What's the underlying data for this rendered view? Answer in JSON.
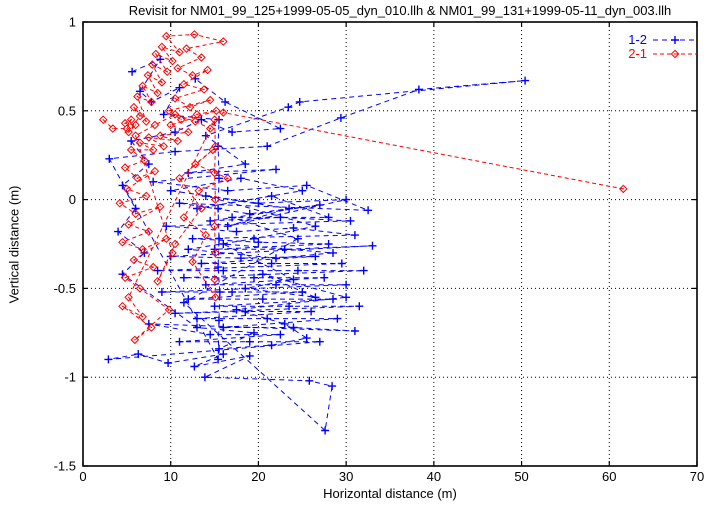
{
  "figure": {
    "title": "Revisit for NM01_99_125+1999-05-05_dyn_010.llh & NM01_99_131+1999-05-11_dyn_003.llh"
  },
  "chart_data": {
    "type": "scatter",
    "style": "linespoints, dashed connecting lines",
    "title": "Revisit for NM01_99_125+1999-05-05_dyn_010.llh & NM01_99_131+1999-05-11_dyn_003.llh",
    "xlabel": "Horizontal distance (m)",
    "ylabel": "Vertical distance (m)",
    "xlim": [
      0,
      70
    ],
    "ylim": [
      -1.5,
      1
    ],
    "grid": "dotted",
    "legend_position": "top-right-inside",
    "xticks": {
      "values": [
        0,
        10,
        20,
        30,
        40,
        50,
        60,
        70
      ],
      "labels": [
        "0",
        "10",
        "20",
        "30",
        "40",
        "50",
        "60",
        "70"
      ]
    },
    "yticks": {
      "values": [
        1,
        0.5,
        0,
        -0.5,
        -1,
        -1.5
      ],
      "labels": [
        "1",
        "0.5",
        "0",
        "-0.5",
        "-1",
        "-1.5"
      ]
    },
    "series": [
      {
        "name": "1-2",
        "color": "#0000ff",
        "marker": "plus",
        "dash": "5,4",
        "points": [
          [
            5.6,
            0.72
          ],
          [
            8.8,
            0.79
          ],
          [
            6.5,
            0.61
          ],
          [
            7.8,
            0.55
          ],
          [
            11.0,
            0.63
          ],
          [
            9.2,
            0.48
          ],
          [
            15.5,
            0.45
          ],
          [
            15.4,
            0.3
          ],
          [
            15.5,
            0.12
          ],
          [
            15.4,
            -0.05
          ],
          [
            15.5,
            -0.22
          ],
          [
            15.4,
            -0.38
          ],
          [
            15.6,
            -0.52
          ],
          [
            15.5,
            -0.68
          ],
          [
            15.4,
            -0.9
          ],
          [
            3.0,
            0.23
          ],
          [
            10.5,
            0.27
          ],
          [
            21.0,
            0.3
          ],
          [
            29.4,
            0.46
          ],
          [
            38.3,
            0.62
          ],
          [
            50.4,
            0.67
          ],
          [
            24.7,
            0.55
          ],
          [
            23.4,
            0.52
          ],
          [
            14.0,
            0.36
          ],
          [
            18.5,
            0.2
          ],
          [
            12.0,
            0.15
          ],
          [
            22.0,
            0.17
          ],
          [
            8.0,
            0.1
          ],
          [
            16.5,
            0.05
          ],
          [
            25.5,
            0.08
          ],
          [
            32.5,
            -0.06
          ],
          [
            11.0,
            -0.02
          ],
          [
            19.0,
            -0.08
          ],
          [
            27.0,
            -0.03
          ],
          [
            14.5,
            -0.12
          ],
          [
            22.5,
            -0.1
          ],
          [
            30.5,
            -0.12
          ],
          [
            9.5,
            -0.15
          ],
          [
            17.5,
            -0.18
          ],
          [
            24.0,
            -0.16
          ],
          [
            31.0,
            -0.2
          ],
          [
            12.5,
            -0.22
          ],
          [
            20.0,
            -0.24
          ],
          [
            28.0,
            -0.25
          ],
          [
            15.0,
            -0.28
          ],
          [
            23.0,
            -0.28
          ],
          [
            33.0,
            -0.26
          ],
          [
            10.0,
            -0.32
          ],
          [
            18.0,
            -0.33
          ],
          [
            26.5,
            -0.32
          ],
          [
            13.5,
            -0.36
          ],
          [
            21.5,
            -0.36
          ],
          [
            29.5,
            -0.36
          ],
          [
            8.5,
            -0.4
          ],
          [
            16.0,
            -0.4
          ],
          [
            24.5,
            -0.4
          ],
          [
            32.0,
            -0.4
          ],
          [
            11.5,
            -0.44
          ],
          [
            19.5,
            -0.44
          ],
          [
            27.5,
            -0.44
          ],
          [
            14.0,
            -0.48
          ],
          [
            22.0,
            -0.48
          ],
          [
            30.0,
            -0.48
          ],
          [
            9.0,
            -0.52
          ],
          [
            17.0,
            -0.52
          ],
          [
            25.0,
            -0.52
          ],
          [
            12.0,
            -0.56
          ],
          [
            20.5,
            -0.56
          ],
          [
            28.5,
            -0.56
          ],
          [
            15.0,
            -0.6
          ],
          [
            23.5,
            -0.6
          ],
          [
            31.5,
            -0.6
          ],
          [
            10.5,
            -0.64
          ],
          [
            18.5,
            -0.63
          ],
          [
            26.0,
            -0.63
          ],
          [
            13.0,
            -0.67
          ],
          [
            21.0,
            -0.67
          ],
          [
            29.0,
            -0.67
          ],
          [
            16.0,
            -0.72
          ],
          [
            24.0,
            -0.72
          ],
          [
            31.0,
            -0.74
          ],
          [
            7.5,
            -0.7
          ],
          [
            14.5,
            -0.76
          ],
          [
            22.5,
            -0.76
          ],
          [
            11.0,
            -0.8
          ],
          [
            19.0,
            -0.8
          ],
          [
            27.0,
            -0.8
          ],
          [
            2.9,
            -0.9
          ],
          [
            6.3,
            -0.87
          ],
          [
            9.7,
            -0.92
          ],
          [
            16.0,
            -0.87
          ],
          [
            12.7,
            -0.94
          ],
          [
            19.0,
            -0.88
          ],
          [
            13.9,
            -1.0
          ],
          [
            25.8,
            -1.02
          ],
          [
            28.4,
            -1.05
          ],
          [
            27.6,
            -1.3
          ],
          [
            11.5,
            -0.58
          ],
          [
            24.5,
            -0.22
          ],
          [
            17.0,
            -0.1
          ],
          [
            28.0,
            -0.1
          ],
          [
            21.5,
            0.02
          ],
          [
            13.0,
            -0.05
          ],
          [
            25.0,
            0.05
          ],
          [
            18.0,
            0.12
          ],
          [
            10.0,
            0.05
          ],
          [
            20.0,
            -0.02
          ],
          [
            30.0,
            0.0
          ],
          [
            16.5,
            -0.15
          ],
          [
            23.5,
            -0.05
          ],
          [
            14.0,
            0.02
          ],
          [
            26.5,
            -0.15
          ],
          [
            19.5,
            -0.22
          ],
          [
            12.0,
            -0.28
          ],
          [
            22.0,
            -0.33
          ],
          [
            28.5,
            -0.3
          ],
          [
            16.0,
            -0.25
          ],
          [
            24.0,
            -0.45
          ],
          [
            18.5,
            -0.5
          ],
          [
            26.5,
            -0.55
          ],
          [
            20.5,
            -0.42
          ],
          [
            30.0,
            -0.55
          ],
          [
            17.5,
            -0.62
          ],
          [
            23.0,
            -0.7
          ],
          [
            25.5,
            -0.78
          ],
          [
            21.5,
            -0.82
          ],
          [
            15.5,
            -0.84
          ],
          [
            19.5,
            -0.75
          ],
          [
            13.0,
            -0.72
          ],
          [
            4.5,
            -0.42
          ],
          [
            7.0,
            -0.3
          ],
          [
            4.0,
            -0.18
          ],
          [
            6.0,
            -0.05
          ],
          [
            4.5,
            0.08
          ],
          [
            7.5,
            0.2
          ],
          [
            5.5,
            0.33
          ],
          [
            10.5,
            0.38
          ],
          [
            13.5,
            0.45
          ],
          [
            17.0,
            0.38
          ],
          [
            22.5,
            0.4
          ],
          [
            16.2,
            0.55
          ],
          [
            12.8,
            0.68
          ]
        ]
      },
      {
        "name": "2-1",
        "color": "#ff0000",
        "marker": "diamond",
        "dash": "4,3",
        "points": [
          [
            2.3,
            0.45
          ],
          [
            3.4,
            0.4
          ],
          [
            5.0,
            0.4
          ],
          [
            5.5,
            0.45
          ],
          [
            4.8,
            0.43
          ],
          [
            6.0,
            0.42
          ],
          [
            5.2,
            0.38
          ],
          [
            6.5,
            0.47
          ],
          [
            5.8,
            0.52
          ],
          [
            7.2,
            0.44
          ],
          [
            6.2,
            0.58
          ],
          [
            7.8,
            0.55
          ],
          [
            6.8,
            0.64
          ],
          [
            8.5,
            0.6
          ],
          [
            7.4,
            0.7
          ],
          [
            9.0,
            0.66
          ],
          [
            7.9,
            0.76
          ],
          [
            9.6,
            0.72
          ],
          [
            8.3,
            0.82
          ],
          [
            10.2,
            0.78
          ],
          [
            9.0,
            0.86
          ],
          [
            11.0,
            0.83
          ],
          [
            9.5,
            0.92
          ],
          [
            12.7,
            0.93
          ],
          [
            16.0,
            0.89
          ],
          [
            11.8,
            0.85
          ],
          [
            13.5,
            0.8
          ],
          [
            10.8,
            0.74
          ],
          [
            12.5,
            0.7
          ],
          [
            14.2,
            0.73
          ],
          [
            11.5,
            0.65
          ],
          [
            13.8,
            0.62
          ],
          [
            10.5,
            0.57
          ],
          [
            12.2,
            0.52
          ],
          [
            14.5,
            0.56
          ],
          [
            9.8,
            0.5
          ],
          [
            11.2,
            0.45
          ],
          [
            13.0,
            0.48
          ],
          [
            15.2,
            0.5
          ],
          [
            10.0,
            0.42
          ],
          [
            12.0,
            0.38
          ],
          [
            8.8,
            0.36
          ],
          [
            10.8,
            0.33
          ],
          [
            7.5,
            0.35
          ],
          [
            9.2,
            0.3
          ],
          [
            6.5,
            0.32
          ],
          [
            8.0,
            0.28
          ],
          [
            5.5,
            0.28
          ],
          [
            7.0,
            0.22
          ],
          [
            4.8,
            0.18
          ],
          [
            6.2,
            0.12
          ],
          [
            8.2,
            0.16
          ],
          [
            5.0,
            0.06
          ],
          [
            7.2,
            0.02
          ],
          [
            4.2,
            -0.02
          ],
          [
            6.0,
            -0.08
          ],
          [
            8.8,
            -0.04
          ],
          [
            5.2,
            -0.14
          ],
          [
            7.5,
            -0.18
          ],
          [
            4.5,
            -0.24
          ],
          [
            6.8,
            -0.28
          ],
          [
            9.5,
            -0.22
          ],
          [
            5.8,
            -0.34
          ],
          [
            8.0,
            -0.38
          ],
          [
            4.8,
            -0.44
          ],
          [
            6.5,
            -0.5
          ],
          [
            9.8,
            -0.62
          ],
          [
            5.9,
            -0.79
          ],
          [
            7.8,
            -0.72
          ],
          [
            4.5,
            -0.6
          ],
          [
            6.8,
            -0.66
          ],
          [
            5.2,
            -0.55
          ],
          [
            15.0,
            0.45
          ],
          [
            15.1,
            0.3
          ],
          [
            15.0,
            0.15
          ],
          [
            15.1,
            0.0
          ],
          [
            15.0,
            -0.15
          ],
          [
            15.1,
            -0.3
          ],
          [
            15.0,
            -0.45
          ],
          [
            15.1,
            -0.55
          ],
          [
            12.5,
            -0.35
          ],
          [
            14.0,
            -0.2
          ],
          [
            11.5,
            -0.1
          ],
          [
            13.2,
            0.05
          ],
          [
            16.5,
            0.12
          ],
          [
            12.8,
            0.2
          ],
          [
            14.8,
            0.28
          ],
          [
            11.0,
            0.12
          ],
          [
            13.5,
            -0.05
          ],
          [
            10.5,
            -0.25
          ],
          [
            8.5,
            -0.46
          ],
          [
            10.2,
            -0.3
          ],
          [
            6.0,
            0.36
          ],
          [
            8.2,
            0.42
          ],
          [
            10.5,
            0.48
          ],
          [
            12.8,
            0.44
          ],
          [
            14.5,
            0.4
          ],
          [
            16.0,
            0.49
          ],
          [
            61.6,
            0.06
          ]
        ]
      }
    ]
  }
}
